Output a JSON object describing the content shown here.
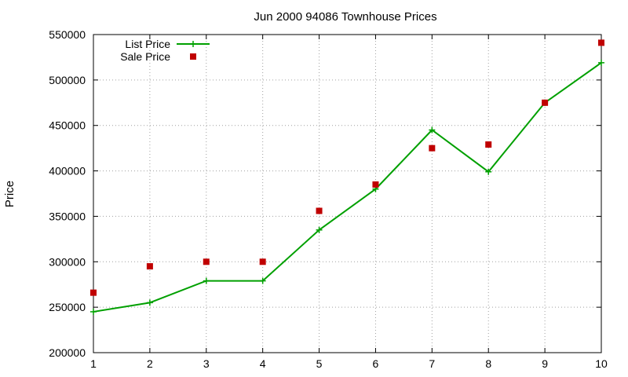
{
  "chart_data": {
    "type": "line",
    "title": "Jun 2000 94086 Townhouse Prices",
    "ylabel": "Price",
    "xlabel": "",
    "xlim": [
      1,
      10
    ],
    "ylim": [
      200000,
      550000
    ],
    "grid": true,
    "legend_position": "top-left",
    "x_ticks": [
      1,
      2,
      3,
      4,
      5,
      6,
      7,
      8,
      9,
      10
    ],
    "y_ticks": [
      200000,
      250000,
      300000,
      350000,
      400000,
      450000,
      500000,
      550000
    ],
    "x": [
      1,
      2,
      3,
      4,
      5,
      6,
      7,
      8,
      9,
      10
    ],
    "series": [
      {
        "name": "List Price",
        "style": "lines+points",
        "marker": "plus",
        "color": "#00a000",
        "values": [
          245000,
          255000,
          279000,
          279000,
          335000,
          380000,
          445000,
          399000,
          475000,
          519000
        ]
      },
      {
        "name": "Sale Price",
        "style": "points",
        "marker": "square",
        "color": "#c00000",
        "values": [
          266000,
          295000,
          300000,
          300000,
          356000,
          385000,
          425000,
          429000,
          475000,
          541000
        ]
      }
    ]
  }
}
